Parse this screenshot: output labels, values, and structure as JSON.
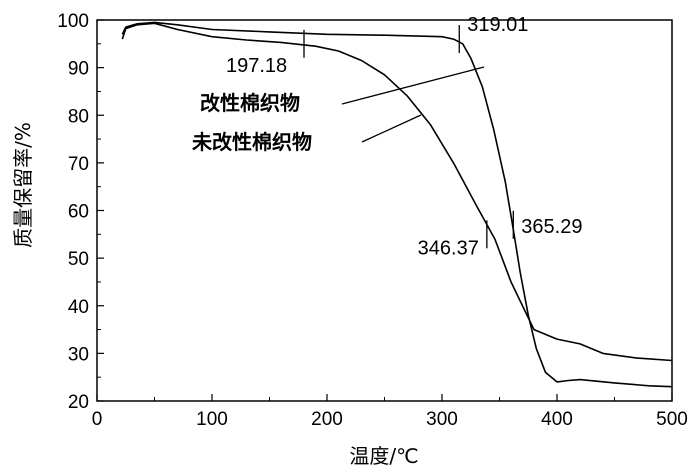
{
  "chart_data": {
    "type": "line",
    "title": "",
    "xlabel": "温度/℃",
    "ylabel": "质量保留率/%",
    "xlim": [
      0,
      500
    ],
    "ylim": [
      20,
      100
    ],
    "xticks": [
      0,
      100,
      200,
      300,
      400,
      500
    ],
    "yticks": [
      20,
      30,
      40,
      50,
      60,
      70,
      80,
      90,
      100
    ],
    "grid": false,
    "series": [
      {
        "name": "改性棉织物",
        "x": [
          22,
          25,
          35,
          50,
          70,
          100,
          150,
          200,
          250,
          300,
          310,
          318,
          325,
          335,
          345,
          355,
          362,
          368,
          375,
          382,
          390,
          400,
          410,
          420,
          450,
          480,
          500
        ],
        "y": [
          97,
          98.5,
          99.2,
          99.5,
          99,
          98,
          97.5,
          97,
          96.8,
          96.5,
          96,
          95,
          92,
          86,
          77,
          66,
          56,
          47,
          38,
          31,
          26,
          24,
          24.3,
          24.5,
          23.8,
          23.2,
          23
        ]
      },
      {
        "name": "未改性棉织物",
        "x": [
          22,
          25,
          35,
          50,
          70,
          100,
          130,
          160,
          190,
          210,
          230,
          250,
          270,
          290,
          310,
          330,
          346,
          360,
          370,
          380,
          400,
          420,
          440,
          470,
          500
        ],
        "y": [
          96,
          98.2,
          99,
          99.3,
          98,
          96.5,
          95.8,
          95.3,
          94.5,
          93.5,
          91.5,
          88.5,
          84,
          78,
          70,
          61,
          54,
          45,
          40,
          35,
          33,
          32,
          30,
          29,
          28.5
        ]
      }
    ],
    "annotations": [
      {
        "text": "319.01",
        "x": 315,
        "y": 96
      },
      {
        "text": "197.18",
        "x": 180,
        "y": 95
      },
      {
        "text": "346.37",
        "x": 339,
        "y": 55
      },
      {
        "text": "365.29",
        "x": 362,
        "y": 57
      }
    ]
  }
}
